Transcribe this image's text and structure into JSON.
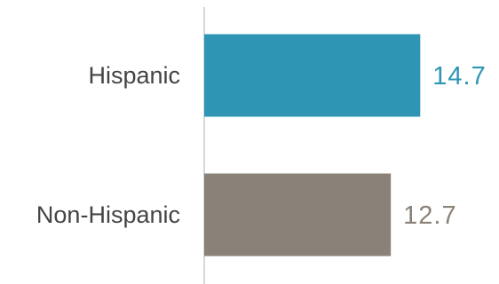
{
  "chart_data": {
    "type": "bar",
    "orientation": "horizontal",
    "categories": [
      "Hispanic",
      "Non-Hispanic"
    ],
    "values": [
      14.7,
      12.7
    ],
    "value_labels": [
      "14.7",
      "12.7"
    ],
    "colors": [
      "#2e95b4",
      "#8a8178"
    ],
    "xlim": [
      0,
      20
    ],
    "grid": false,
    "legend": "none"
  }
}
